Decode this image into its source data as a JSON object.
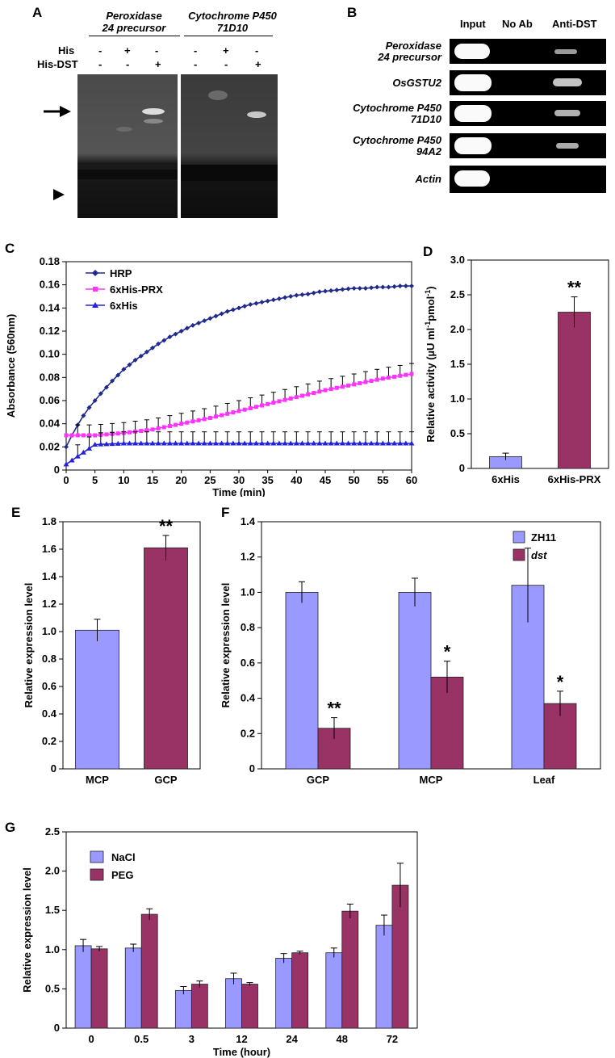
{
  "panels": {
    "A": "A",
    "B": "B",
    "C": "C",
    "D": "D",
    "E": "E",
    "F": "F",
    "G": "G"
  },
  "panelA": {
    "probe1": "Peroxidase 24 precursor",
    "probe1_line1": "Peroxidase",
    "probe1_line2": "24 precursor",
    "probe2_line1": "Cytochrome P450",
    "probe2_line2": "71D10",
    "row_his": "His",
    "row_hisdst": "His-DST",
    "his_marks": [
      "-",
      "+",
      "-",
      "-",
      "+",
      "-"
    ],
    "hisdst_marks": [
      "-",
      "-",
      "+",
      "-",
      "-",
      "+"
    ]
  },
  "panelB": {
    "columns": [
      "Input",
      "No Ab",
      "Anti-DST"
    ],
    "rows": [
      {
        "line1": "Peroxidase",
        "line2": "24 precursor"
      },
      {
        "line1": "OsGSTU2",
        "line2": ""
      },
      {
        "line1": "Cytochrome P450",
        "line2": "71D10"
      },
      {
        "line1": "Cytochrome P450",
        "line2": "94A2"
      },
      {
        "line1": "Actin",
        "line2": ""
      }
    ]
  },
  "chart_data": [
    {
      "panel": "C",
      "type": "line",
      "xlabel": "Time (min)",
      "ylabel": "Absorbance (560nm)",
      "xlim": [
        0,
        60
      ],
      "ylim": [
        0,
        0.18
      ],
      "xticks": [
        0,
        5,
        10,
        15,
        20,
        25,
        30,
        35,
        40,
        45,
        50,
        55,
        60
      ],
      "yticks": [
        "0",
        "0.02",
        "0.04",
        "0.06",
        "0.08",
        "0.10",
        "0.12",
        "0.14",
        "0.16",
        "0.18"
      ],
      "legend": "top-left",
      "series": [
        {
          "name": "HRP",
          "color": "#1f2a8c",
          "marker": "diamond",
          "x": [
            0,
            1,
            2,
            3,
            4,
            5,
            6,
            8,
            10,
            12,
            14,
            16,
            18,
            20,
            22,
            24,
            26,
            28,
            30,
            32,
            34,
            36,
            38,
            40,
            42,
            44,
            46,
            48,
            50,
            52,
            54,
            56,
            58,
            60
          ],
          "y": [
            0.02,
            0.03,
            0.039,
            0.047,
            0.054,
            0.06,
            0.066,
            0.077,
            0.087,
            0.095,
            0.102,
            0.109,
            0.115,
            0.12,
            0.125,
            0.129,
            0.133,
            0.137,
            0.14,
            0.143,
            0.145,
            0.147,
            0.149,
            0.151,
            0.152,
            0.154,
            0.155,
            0.156,
            0.157,
            0.157,
            0.158,
            0.158,
            0.159,
            0.159
          ]
        },
        {
          "name": "6xHis-PRX",
          "color": "#ff33ff",
          "marker": "square",
          "x": [
            0,
            5,
            10,
            15,
            20,
            25,
            30,
            35,
            40,
            45,
            50,
            55,
            60
          ],
          "y": [
            0.03,
            0.03,
            0.032,
            0.035,
            0.04,
            0.045,
            0.051,
            0.057,
            0.063,
            0.069,
            0.074,
            0.079,
            0.083
          ],
          "err": 0.009
        },
        {
          "name": "6xHis",
          "color": "#2222dd",
          "marker": "triangle",
          "x": [
            0,
            5,
            10,
            15,
            20,
            25,
            30,
            35,
            40,
            45,
            50,
            55,
            60
          ],
          "y": [
            0.005,
            0.022,
            0.023,
            0.023,
            0.023,
            0.023,
            0.023,
            0.023,
            0.023,
            0.023,
            0.023,
            0.023,
            0.023
          ],
          "err": 0.01
        }
      ]
    },
    {
      "panel": "D",
      "type": "bar",
      "ylabel": "Relative activity (µU ml⁻¹pmol⁻¹)",
      "ylabel_main": "Relative activity (µU ml",
      "ylabel_sup1": "-1",
      "ylabel_mid": "pmol",
      "ylabel_sup2": "-1",
      "ylabel_end": ")",
      "ylim": [
        0,
        3.0
      ],
      "yticks": [
        "0",
        "0.5",
        "1.0",
        "1.5",
        "2.0",
        "2.5",
        "3.0"
      ],
      "categories": [
        "6xHis",
        "6xHis-PRX"
      ],
      "values": [
        0.17,
        2.25
      ],
      "errors": [
        0.05,
        0.22
      ],
      "colors": [
        "#9999ff",
        "#993366"
      ],
      "annotations": [
        "",
        "**"
      ]
    },
    {
      "panel": "E",
      "type": "bar",
      "ylabel": "Relative expression level",
      "ylim": [
        0,
        1.8
      ],
      "yticks": [
        "0",
        "0.2",
        "0.4",
        "0.6",
        "0.8",
        "1.0",
        "1.2",
        "1.4",
        "1.6",
        "1.8"
      ],
      "categories": [
        "MCP",
        "GCP"
      ],
      "values": [
        1.01,
        1.61
      ],
      "errors": [
        0.08,
        0.09
      ],
      "colors": [
        "#9999ff",
        "#993366"
      ],
      "annotations": [
        "",
        "**"
      ]
    },
    {
      "panel": "F",
      "type": "bar",
      "ylabel": "Relative expression level",
      "ylim": [
        0,
        1.4
      ],
      "yticks": [
        "0",
        "0.2",
        "0.4",
        "0.6",
        "0.8",
        "1.0",
        "1.2",
        "1.4"
      ],
      "categories": [
        "GCP",
        "MCP",
        "Leaf"
      ],
      "legend": "top-right",
      "series": [
        {
          "name": "ZH11",
          "values": [
            1.0,
            1.0,
            1.04
          ],
          "errors": [
            0.06,
            0.08,
            0.21
          ],
          "color": "#9999ff",
          "annotations": [
            "",
            "",
            ""
          ]
        },
        {
          "name": "dst",
          "values": [
            0.23,
            0.52,
            0.37
          ],
          "errors": [
            0.06,
            0.09,
            0.07
          ],
          "color": "#993366",
          "annotations": [
            "**",
            "*",
            "*"
          ]
        }
      ]
    },
    {
      "panel": "G",
      "type": "bar",
      "xlabel": "Time (hour)",
      "ylabel": "Relative expression level",
      "ylim": [
        0,
        2.5
      ],
      "yticks": [
        "0",
        "0.5",
        "1.0",
        "1.5",
        "2.0",
        "2.5"
      ],
      "categories": [
        "0",
        "0.5",
        "3",
        "12",
        "24",
        "48",
        "72"
      ],
      "legend": "top-left",
      "series": [
        {
          "name": "NaCl",
          "values": [
            1.05,
            1.02,
            0.48,
            0.63,
            0.89,
            0.96,
            1.31
          ],
          "errors": [
            0.08,
            0.05,
            0.05,
            0.07,
            0.06,
            0.06,
            0.13
          ],
          "color": "#9999ff"
        },
        {
          "name": "PEG",
          "values": [
            1.01,
            1.45,
            0.56,
            0.56,
            0.96,
            1.49,
            1.82
          ],
          "errors": [
            0.03,
            0.07,
            0.04,
            0.02,
            0.02,
            0.09,
            0.28
          ],
          "color": "#993366"
        }
      ]
    }
  ]
}
